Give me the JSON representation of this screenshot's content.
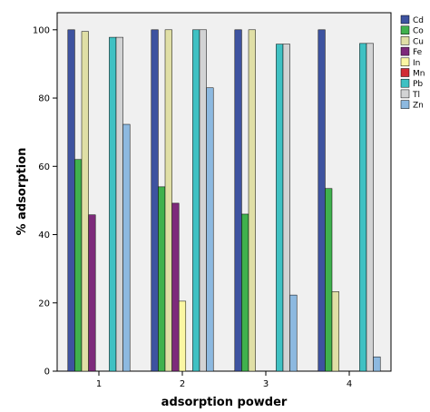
{
  "chart_data": {
    "type": "bar",
    "title": "",
    "xlabel": "adsorption powder",
    "ylabel": "% adsorption",
    "categories": [
      "1",
      "2",
      "3",
      "4"
    ],
    "ylim": [
      0,
      105
    ],
    "yticks": [
      0,
      20,
      40,
      60,
      80,
      100
    ],
    "grid": false,
    "legend_position": "right",
    "series": [
      {
        "name": "Cd",
        "color": "#3e53a0",
        "values": [
          100,
          100,
          100,
          100
        ]
      },
      {
        "name": "Co",
        "color": "#40b14d",
        "values": [
          62,
          54,
          46,
          53.5
        ]
      },
      {
        "name": "Cu",
        "color": "#e0dfa6",
        "values": [
          99.5,
          100,
          100,
          23.3
        ]
      },
      {
        "name": "Fe",
        "color": "#7d2a7b",
        "values": [
          45.8,
          49.2,
          0,
          0
        ]
      },
      {
        "name": "In",
        "color": "#fbf7a3",
        "values": [
          0,
          20.5,
          0,
          0
        ]
      },
      {
        "name": "Mn",
        "color": "#d02c34",
        "values": [
          0,
          0,
          0,
          0
        ]
      },
      {
        "name": "Pb",
        "color": "#3fc1c3",
        "values": [
          97.8,
          100,
          95.8,
          96
        ]
      },
      {
        "name": "Tl",
        "color": "#d2d3d4",
        "values": [
          97.8,
          100,
          95.8,
          96
        ]
      },
      {
        "name": "Zn",
        "color": "#8db9e0",
        "values": [
          72.3,
          83,
          22.3,
          4.2
        ]
      }
    ]
  }
}
